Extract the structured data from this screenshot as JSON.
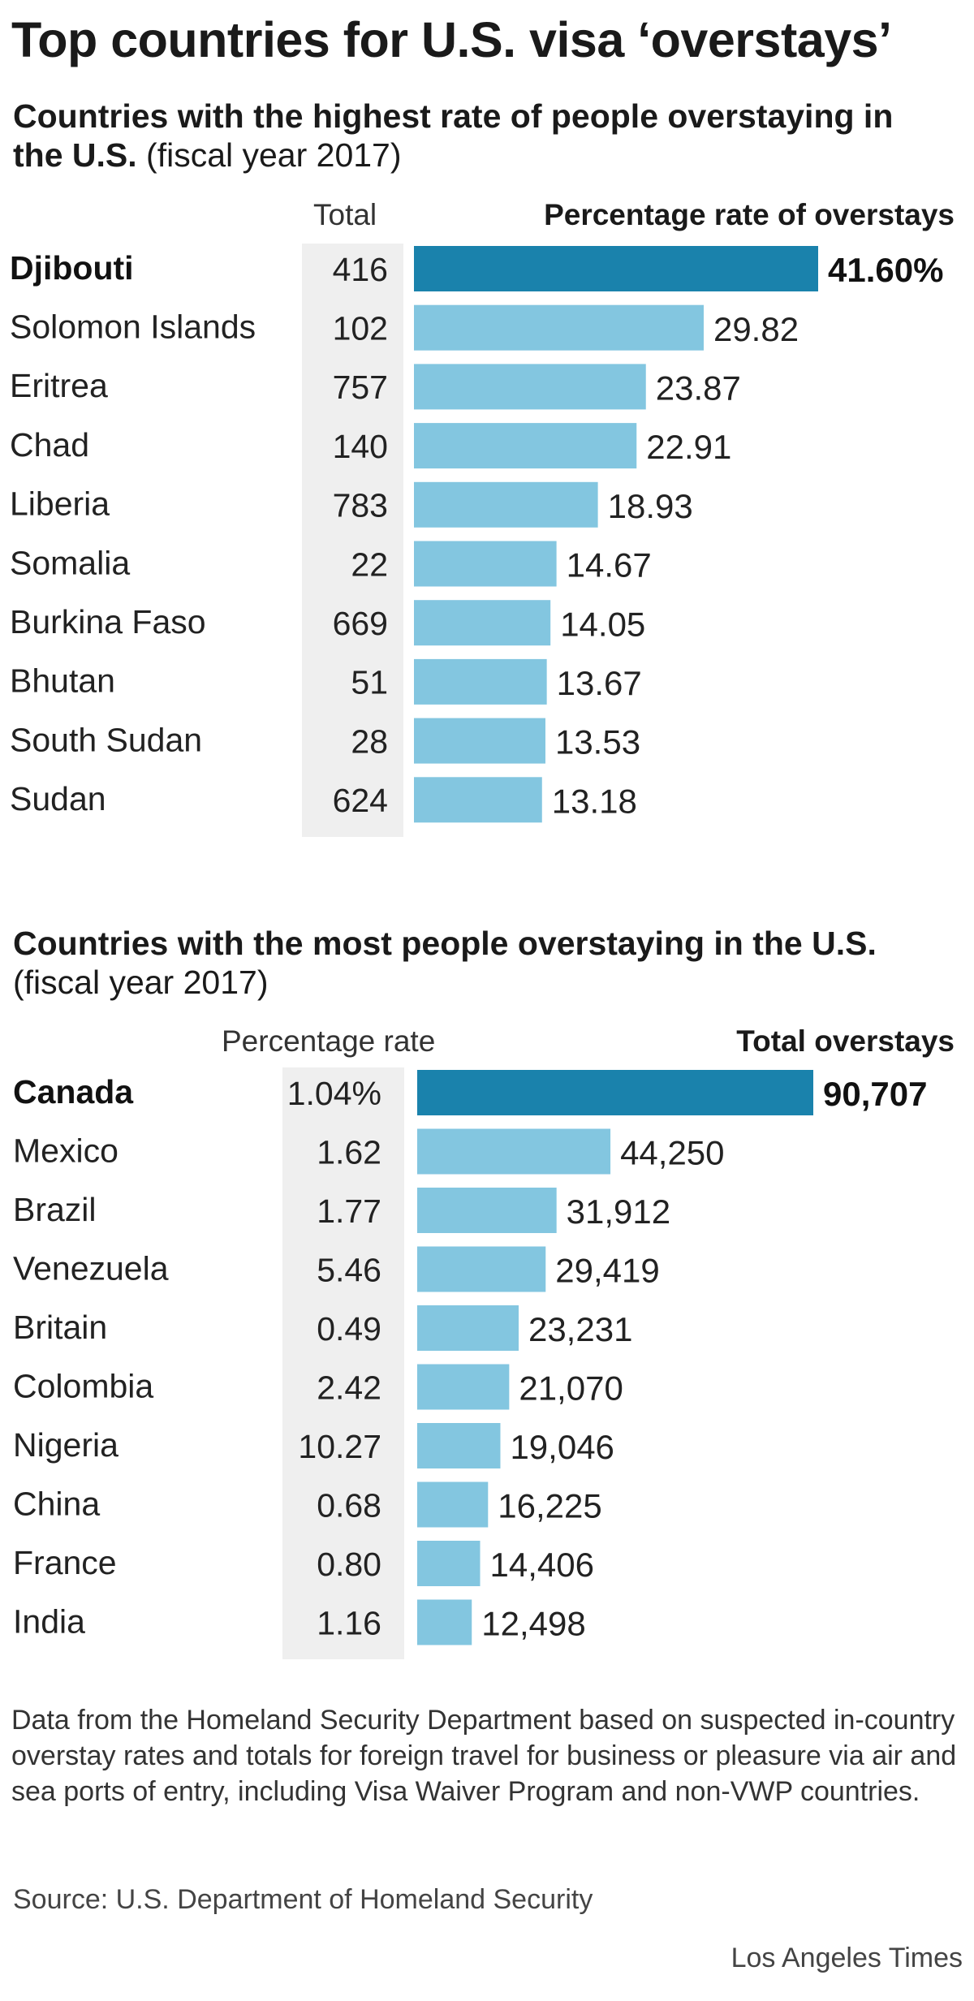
{
  "title": "Top countries for U.S. visa ‘overstays’",
  "colors": {
    "highlight_bar": "#1a82ac",
    "bar": "#83c6e0",
    "side_column_bg": "#efefef"
  },
  "chart_data": [
    {
      "type": "bar",
      "orientation": "horizontal",
      "title": "Countries with the highest rate of people overstaying in the U.S.",
      "title_note": "(fiscal year 2017)",
      "side_column_header": "Total",
      "bar_header": "Percentage rate of overstays",
      "highlight_index": 0,
      "categories": [
        "Djibouti",
        "Solomon Islands",
        "Eritrea",
        "Chad",
        "Liberia",
        "Somalia",
        "Burkina Faso",
        "Bhutan",
        "South Sudan",
        "Sudan"
      ],
      "side_values": [
        "416",
        "102",
        "757",
        "140",
        "783",
        "22",
        "669",
        "51",
        "28",
        "624"
      ],
      "values": [
        41.6,
        29.82,
        23.87,
        22.91,
        18.93,
        14.67,
        14.05,
        13.67,
        13.53,
        13.18
      ],
      "value_labels": [
        "41.60%",
        "29.82",
        "23.87",
        "22.91",
        "18.93",
        "14.67",
        "14.05",
        "13.67",
        "13.53",
        "13.18"
      ],
      "xlim": [
        0,
        41.6
      ]
    },
    {
      "type": "bar",
      "orientation": "horizontal",
      "title": "Countries with the most people overstaying in the U.S.",
      "title_note": "(fiscal year 2017)",
      "side_column_header": "Percentage rate",
      "bar_header": "Total overstays",
      "highlight_index": 0,
      "categories": [
        "Canada",
        "Mexico",
        "Brazil",
        "Venezuela",
        "Britain",
        "Colombia",
        "Nigeria",
        "China",
        "France",
        "India"
      ],
      "side_values": [
        "1.04%",
        "1.62",
        "1.77",
        "5.46",
        "0.49",
        "2.42",
        "10.27",
        "0.68",
        "0.80",
        "1.16"
      ],
      "values": [
        90707,
        44250,
        31912,
        29419,
        23231,
        21070,
        19046,
        16225,
        14406,
        12498
      ],
      "value_labels": [
        "90,707",
        "44,250",
        "31,912",
        "29,419",
        "23,231",
        "21,070",
        "19,046",
        "16,225",
        "14,406",
        "12,498"
      ],
      "xlim": [
        0,
        90707
      ]
    }
  ],
  "footnote": "Data from the Homeland Security Department based on suspected in-country overstay rates and totals for foreign travel for business or pleasure via air and sea ports of entry, including Visa Waiver Program and non-VWP countries.",
  "source": "Source: U.S. Department of Homeland Security",
  "credit": "Los Angeles Times"
}
